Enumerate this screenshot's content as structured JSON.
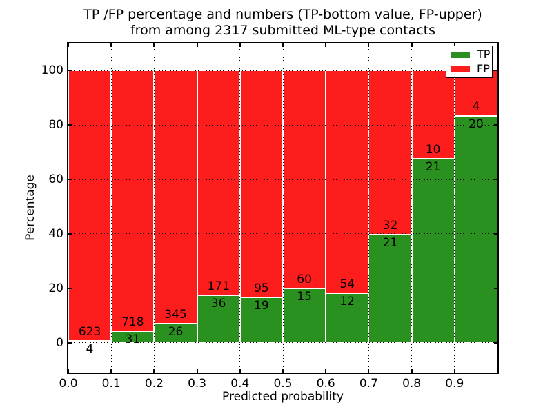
{
  "chart_data": {
    "type": "bar",
    "stacked": true,
    "normalized": "each bin stacked to 100%",
    "title_lines": [
      "TP /FP percentage and numbers (TP-bottom value, FP-upper)",
      "from among 2317 submitted ML-type contacts"
    ],
    "total_contacts": 2317,
    "xlabel": "Predicted probability",
    "ylabel": "Percentage",
    "xlim": [
      0.0,
      1.0
    ],
    "ylim": [
      -11,
      110
    ],
    "grid": true,
    "bin_width": 0.1,
    "bin_starts": [
      0.0,
      0.1,
      0.2,
      0.3,
      0.4,
      0.5,
      0.6,
      0.7,
      0.8,
      0.9
    ],
    "x_ticks": [
      "0.0",
      "0.1",
      "0.2",
      "0.3",
      "0.4",
      "0.5",
      "0.6",
      "0.7",
      "0.8",
      "0.9"
    ],
    "y_ticks": [
      0,
      20,
      40,
      60,
      80,
      100
    ],
    "series": [
      {
        "name": "TP",
        "color": "#2a9120",
        "values": [
          4,
          31,
          26,
          36,
          19,
          15,
          12,
          21,
          21,
          20
        ]
      },
      {
        "name": "FP",
        "color": "#fe1d1d",
        "values": [
          623,
          718,
          345,
          171,
          95,
          60,
          54,
          32,
          10,
          4
        ]
      }
    ],
    "legend": {
      "position": "upper right",
      "entries": [
        {
          "label": "TP",
          "color": "#2a9120"
        },
        {
          "label": "FP",
          "color": "#fe1d1d"
        }
      ]
    }
  }
}
